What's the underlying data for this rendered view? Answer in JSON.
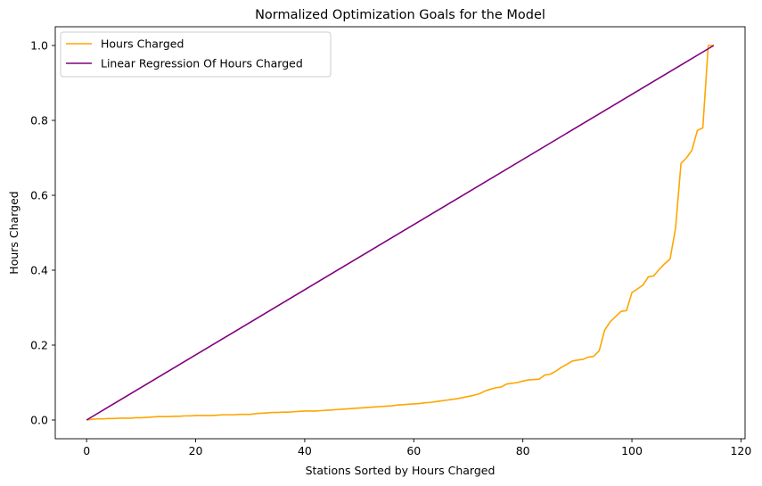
{
  "chart_data": {
    "type": "line",
    "title": "Normalized Optimization Goals for the Model",
    "xlabel": "Stations Sorted by Hours Charged",
    "ylabel": "Hours Charged",
    "xlim": [
      -5.75,
      120.75
    ],
    "ylim": [
      -0.05,
      1.05
    ],
    "xticks": [
      0,
      20,
      40,
      60,
      80,
      100,
      120
    ],
    "xtick_labels": [
      "0",
      "20",
      "40",
      "60",
      "80",
      "100",
      "120"
    ],
    "yticks": [
      0.0,
      0.2,
      0.4,
      0.6,
      0.8,
      1.0
    ],
    "ytick_labels": [
      "0.0",
      "0.2",
      "0.4",
      "0.6",
      "0.8",
      "1.0"
    ],
    "grid": false,
    "legend_position": "top-left",
    "series": [
      {
        "name": "Hours Charged",
        "color": "#FFA500",
        "x": [
          0,
          1,
          2,
          3,
          4,
          5,
          6,
          7,
          8,
          9,
          10,
          11,
          12,
          13,
          14,
          15,
          16,
          17,
          18,
          19,
          20,
          21,
          22,
          23,
          24,
          25,
          26,
          27,
          28,
          29,
          30,
          31,
          32,
          33,
          34,
          35,
          36,
          37,
          38,
          39,
          40,
          41,
          42,
          43,
          44,
          45,
          46,
          47,
          48,
          49,
          50,
          51,
          52,
          53,
          54,
          55,
          56,
          57,
          58,
          59,
          60,
          61,
          62,
          63,
          64,
          65,
          66,
          67,
          68,
          69,
          70,
          71,
          72,
          73,
          74,
          75,
          76,
          77,
          78,
          79,
          80,
          81,
          82,
          83,
          84,
          85,
          86,
          87,
          88,
          89,
          90,
          91,
          92,
          93,
          94,
          95,
          96,
          97,
          98,
          99,
          100,
          101,
          102,
          103,
          104,
          105,
          106,
          107,
          108,
          109,
          110,
          111,
          112,
          113,
          114,
          115
        ],
        "y": [
          0.0,
          0.002,
          0.003,
          0.003,
          0.004,
          0.004,
          0.005,
          0.005,
          0.005,
          0.006,
          0.006,
          0.007,
          0.008,
          0.009,
          0.009,
          0.009,
          0.01,
          0.01,
          0.011,
          0.011,
          0.012,
          0.012,
          0.012,
          0.012,
          0.013,
          0.014,
          0.014,
          0.014,
          0.015,
          0.015,
          0.015,
          0.017,
          0.018,
          0.019,
          0.02,
          0.02,
          0.021,
          0.021,
          0.022,
          0.023,
          0.024,
          0.024,
          0.024,
          0.025,
          0.026,
          0.027,
          0.028,
          0.029,
          0.03,
          0.031,
          0.032,
          0.033,
          0.034,
          0.035,
          0.036,
          0.037,
          0.038,
          0.04,
          0.041,
          0.042,
          0.043,
          0.044,
          0.046,
          0.047,
          0.049,
          0.051,
          0.053,
          0.055,
          0.057,
          0.06,
          0.063,
          0.066,
          0.07,
          0.077,
          0.082,
          0.086,
          0.088,
          0.096,
          0.098,
          0.1,
          0.104,
          0.107,
          0.108,
          0.109,
          0.12,
          0.122,
          0.13,
          0.14,
          0.148,
          0.157,
          0.16,
          0.162,
          0.168,
          0.17,
          0.185,
          0.24,
          0.262,
          0.276,
          0.29,
          0.292,
          0.34,
          0.35,
          0.36,
          0.382,
          0.385,
          0.402,
          0.417,
          0.43,
          0.512,
          0.685,
          0.7,
          0.72,
          0.773,
          0.78,
          1.0,
          1.0
        ]
      },
      {
        "name": "Linear Regression Of Hours Charged",
        "color": "#800080",
        "x": [
          0,
          115
        ],
        "y": [
          0.0,
          1.0
        ]
      }
    ]
  }
}
